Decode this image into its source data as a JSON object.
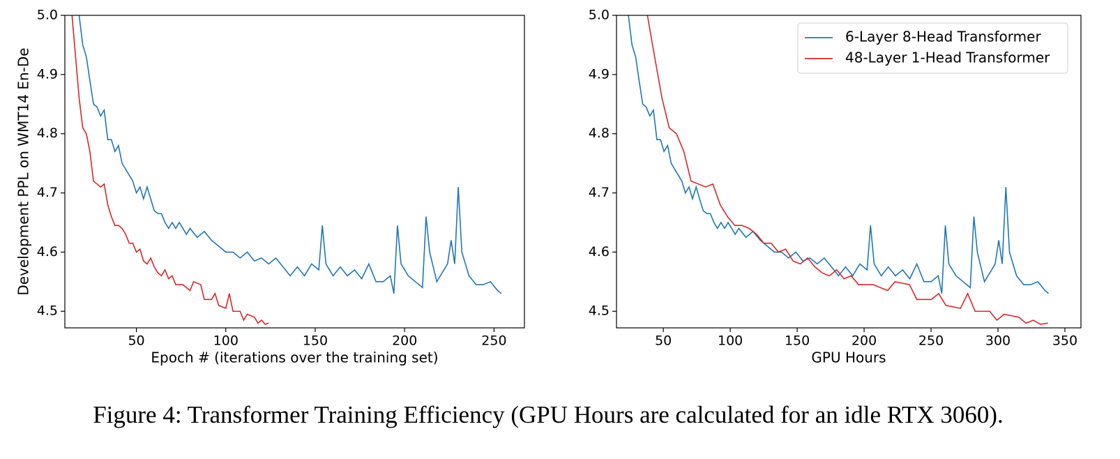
{
  "caption": "Figure 4: Transformer Training Efficiency (GPU Hours are calculated for an idle RTX 3060).",
  "chart_data": [
    {
      "type": "line",
      "xlabel": "Epoch # (iterations over the training set)",
      "ylabel": "Development PPL on WMT14 En-De",
      "xlim": [
        10,
        267
      ],
      "ylim": [
        4.472,
        5.0
      ],
      "xticks": [
        50,
        100,
        150,
        200,
        250
      ],
      "yticks": [
        4.5,
        4.6,
        4.7,
        4.8,
        4.9,
        {
          "value": 5,
          "label": "5.0"
        }
      ],
      "series": [
        {
          "color": "#1f77b4",
          "x": [
            18,
            20,
            22,
            24,
            26,
            28,
            30,
            32,
            34,
            36,
            38,
            40,
            42,
            44,
            46,
            48,
            50,
            52,
            54,
            56,
            58,
            60,
            62,
            64,
            66,
            68,
            70,
            72,
            74,
            76,
            78,
            80,
            84,
            88,
            92,
            96,
            100,
            104,
            108,
            112,
            116,
            120,
            124,
            128,
            132,
            136,
            140,
            144,
            148,
            152,
            154,
            156,
            160,
            164,
            168,
            172,
            176,
            180,
            184,
            188,
            192,
            194,
            196,
            198,
            202,
            206,
            210,
            212,
            214,
            218,
            222,
            224,
            226,
            228,
            230,
            232,
            236,
            240,
            244,
            248,
            252,
            254
          ],
          "values": [
            5.0,
            4.95,
            4.93,
            4.89,
            4.85,
            4.845,
            4.83,
            4.84,
            4.79,
            4.79,
            4.77,
            4.78,
            4.75,
            4.74,
            4.73,
            4.72,
            4.7,
            4.71,
            4.69,
            4.71,
            4.69,
            4.67,
            4.665,
            4.665,
            4.65,
            4.64,
            4.65,
            4.64,
            4.65,
            4.64,
            4.63,
            4.64,
            4.625,
            4.635,
            4.62,
            4.61,
            4.6,
            4.6,
            4.59,
            4.6,
            4.585,
            4.59,
            4.58,
            4.59,
            4.575,
            4.56,
            4.575,
            4.56,
            4.58,
            4.57,
            4.645,
            4.58,
            4.56,
            4.575,
            4.56,
            4.57,
            4.555,
            4.58,
            4.55,
            4.55,
            4.56,
            4.53,
            4.645,
            4.58,
            4.56,
            4.55,
            4.54,
            4.66,
            4.6,
            4.55,
            4.57,
            4.58,
            4.62,
            4.58,
            4.71,
            4.6,
            4.56,
            4.545,
            4.545,
            4.55,
            4.535,
            4.53
          ]
        },
        {
          "color": "#d62728",
          "x": [
            14,
            16,
            18,
            20,
            22,
            24,
            26,
            28,
            30,
            32,
            34,
            36,
            38,
            40,
            42,
            44,
            46,
            48,
            50,
            52,
            54,
            56,
            58,
            60,
            62,
            64,
            66,
            68,
            70,
            72,
            76,
            80,
            82,
            86,
            88,
            92,
            94,
            96,
            100,
            102,
            104,
            108,
            110,
            112,
            116,
            118,
            120,
            122,
            124
          ],
          "values": [
            5.0,
            4.93,
            4.86,
            4.81,
            4.8,
            4.77,
            4.72,
            4.715,
            4.71,
            4.715,
            4.68,
            4.66,
            4.645,
            4.645,
            4.64,
            4.63,
            4.615,
            4.615,
            4.6,
            4.605,
            4.585,
            4.58,
            4.59,
            4.575,
            4.565,
            4.56,
            4.57,
            4.555,
            4.56,
            4.545,
            4.545,
            4.535,
            4.55,
            4.545,
            4.52,
            4.52,
            4.53,
            4.51,
            4.505,
            4.53,
            4.5,
            4.5,
            4.485,
            4.495,
            4.49,
            4.48,
            4.485,
            4.478,
            4.48
          ]
        }
      ]
    },
    {
      "type": "line",
      "xlabel": "GPU Hours",
      "legend": "upper right",
      "xlim": [
        15,
        362
      ],
      "ylim": [
        4.472,
        5.0
      ],
      "xticks": [
        50,
        100,
        150,
        200,
        250,
        300,
        350
      ],
      "yticks": [
        4.5,
        4.6,
        4.7,
        4.8,
        4.9,
        {
          "value": 5,
          "label": "5.0"
        }
      ],
      "series": [
        {
          "name": "6-Layer 8-Head Transformer",
          "color": "#1f77b4",
          "x": [
            23.9,
            26.6,
            29.3,
            31.9,
            34.6,
            37.2,
            39.9,
            42.6,
            45.2,
            47.9,
            50.5,
            53.2,
            55.9,
            58.5,
            61.2,
            63.8,
            66.5,
            69.2,
            71.8,
            74.5,
            77.1,
            79.8,
            82.5,
            85.1,
            87.8,
            90.4,
            93.1,
            95.8,
            98.4,
            101.1,
            103.7,
            106.4,
            111.7,
            117,
            122.4,
            127.7,
            133,
            138.3,
            143.6,
            149,
            154.3,
            159.6,
            164.9,
            170.2,
            175.6,
            180.9,
            186.2,
            191.5,
            196.8,
            202.2,
            204.8,
            207.5,
            212.8,
            218.1,
            223.4,
            228.8,
            234.1,
            239.4,
            244.7,
            250,
            255.4,
            258,
            260.7,
            263.3,
            268.7,
            274,
            279.3,
            282,
            284.6,
            289.9,
            295.3,
            297.9,
            300.6,
            303.2,
            305.9,
            308.6,
            313.9,
            319.2,
            324.5,
            329.8,
            335.2,
            337.8
          ],
          "values": [
            5.0,
            4.95,
            4.93,
            4.89,
            4.85,
            4.845,
            4.83,
            4.84,
            4.79,
            4.79,
            4.77,
            4.78,
            4.75,
            4.74,
            4.73,
            4.72,
            4.7,
            4.71,
            4.69,
            4.71,
            4.69,
            4.67,
            4.665,
            4.665,
            4.65,
            4.64,
            4.65,
            4.64,
            4.65,
            4.64,
            4.63,
            4.64,
            4.625,
            4.635,
            4.62,
            4.61,
            4.6,
            4.6,
            4.59,
            4.6,
            4.585,
            4.59,
            4.58,
            4.59,
            4.575,
            4.56,
            4.575,
            4.56,
            4.58,
            4.57,
            4.645,
            4.58,
            4.56,
            4.575,
            4.56,
            4.57,
            4.555,
            4.58,
            4.55,
            4.55,
            4.56,
            4.53,
            4.645,
            4.58,
            4.56,
            4.55,
            4.54,
            4.66,
            4.6,
            4.55,
            4.57,
            4.58,
            4.62,
            4.58,
            4.71,
            4.6,
            4.56,
            4.545,
            4.545,
            4.55,
            4.535,
            4.53
          ]
        },
        {
          "name": "48-Layer 1-Head Transformer",
          "color": "#d62728",
          "x": [
            38.1,
            43.5,
            49,
            54.4,
            59.8,
            65.3,
            70.7,
            76.2,
            81.6,
            87,
            92.5,
            97.9,
            103.4,
            108.8,
            114.2,
            119.7,
            125.1,
            130.6,
            136,
            141.4,
            146.9,
            152.3,
            157.8,
            163.2,
            168.6,
            174.1,
            179.5,
            185,
            190.4,
            195.8,
            206.7,
            217.6,
            223,
            233.9,
            239.4,
            250.2,
            255.7,
            261.1,
            272,
            277.4,
            282.9,
            293.8,
            299.2,
            304.6,
            315.5,
            321,
            326.4,
            331.8,
            337.3
          ],
          "values": [
            5.0,
            4.93,
            4.86,
            4.81,
            4.8,
            4.77,
            4.72,
            4.715,
            4.71,
            4.715,
            4.68,
            4.66,
            4.645,
            4.645,
            4.64,
            4.63,
            4.615,
            4.615,
            4.6,
            4.605,
            4.585,
            4.58,
            4.59,
            4.575,
            4.565,
            4.56,
            4.57,
            4.555,
            4.56,
            4.545,
            4.545,
            4.535,
            4.55,
            4.545,
            4.52,
            4.52,
            4.53,
            4.51,
            4.505,
            4.53,
            4.5,
            4.5,
            4.485,
            4.495,
            4.49,
            4.48,
            4.485,
            4.478,
            4.48
          ]
        }
      ]
    }
  ]
}
